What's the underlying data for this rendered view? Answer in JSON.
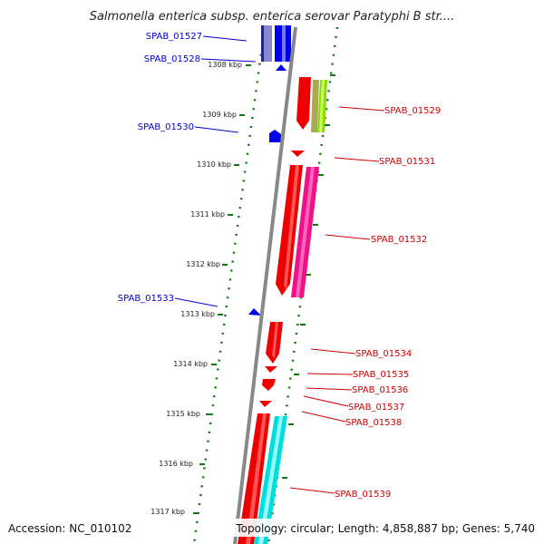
{
  "title": "Salmonella enterica subsp. enterica serovar Paratyphi B str....",
  "footer": {
    "accession": "Accession: NC_010102",
    "summary": "Topology: circular; Length: 4,858,887 bp; Genes: 5,740"
  },
  "colors": {
    "forward_label": "#cc0000",
    "reverse_label": "#0000cc",
    "tick": "#117711",
    "backbone": "#888888"
  },
  "ruler": [
    "1308 kbp",
    "1309 kbp",
    "1310 kbp",
    "1311 kbp",
    "1312 kbp",
    "1313 kbp",
    "1314 kbp",
    "1315 kbp",
    "1316 kbp",
    "1317 kbp"
  ],
  "genes": {
    "reverse": [
      "SPAB_01527",
      "SPAB_01528",
      "SPAB_01530",
      "SPAB_01533"
    ],
    "forward": [
      "SPAB_01529",
      "SPAB_01531",
      "SPAB_01532",
      "SPAB_01534",
      "SPAB_01535",
      "SPAB_01536",
      "SPAB_01537",
      "SPAB_01538",
      "SPAB_01539"
    ]
  }
}
